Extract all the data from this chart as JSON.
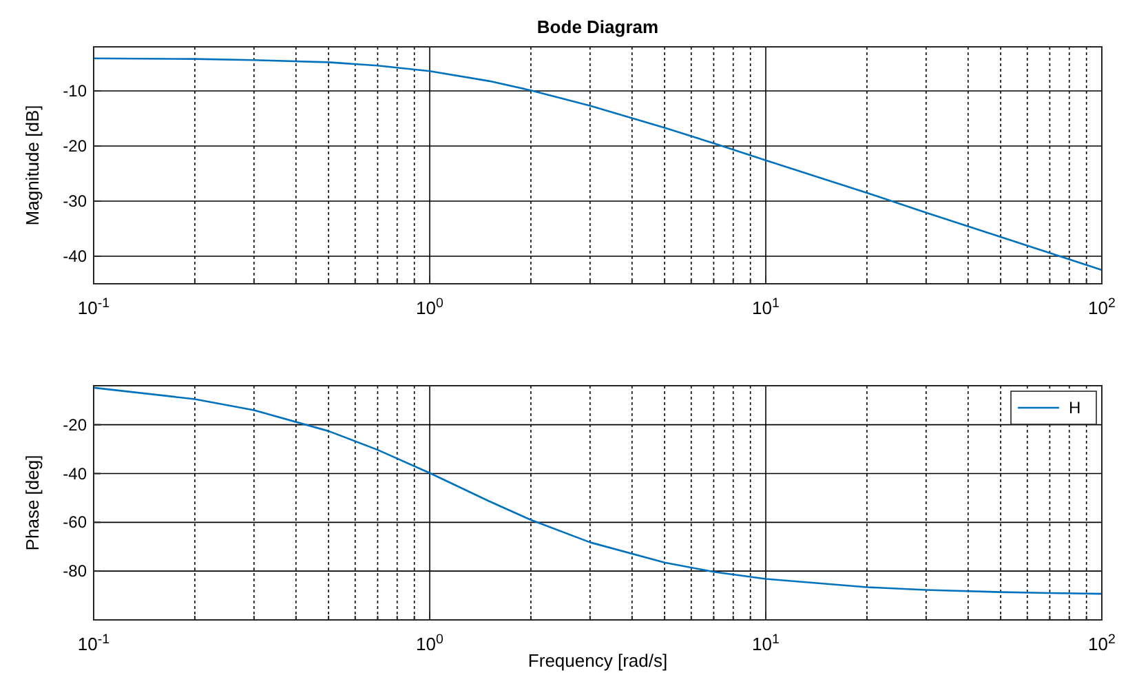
{
  "chart_data": [
    {
      "type": "line",
      "title": "Bode Diagram",
      "ylabel": "Magnitude [dB]",
      "log": "x",
      "grid": true,
      "legend": false,
      "line_style": "solid",
      "marker": "none",
      "xlim": [
        0.1,
        100
      ],
      "ylim": [
        -45,
        -2
      ],
      "yticks": [
        -10,
        -20,
        -30,
        -40
      ],
      "xticks": [
        {
          "value": 0.1,
          "label": "10$^{-1}$"
        },
        {
          "value": 0.2,
          "label": null
        },
        {
          "value": 0.3,
          "label": null
        },
        {
          "value": 0.4,
          "label": null
        },
        {
          "value": 0.5,
          "label": null
        },
        {
          "value": 0.6,
          "label": null
        },
        {
          "value": 0.7,
          "label": null
        },
        {
          "value": 0.8,
          "label": null
        },
        {
          "value": 0.9,
          "label": null
        },
        {
          "value": 1,
          "label": "10$^{0}$"
        },
        {
          "value": 2,
          "label": null
        },
        {
          "value": 3,
          "label": null
        },
        {
          "value": 4,
          "label": null
        },
        {
          "value": 5,
          "label": null
        },
        {
          "value": 6,
          "label": null
        },
        {
          "value": 7,
          "label": null
        },
        {
          "value": 8,
          "label": null
        },
        {
          "value": 9,
          "label": null
        },
        {
          "value": 10,
          "label": "10$^{1}$"
        },
        {
          "value": 20,
          "label": null
        },
        {
          "value": 30,
          "label": null
        },
        {
          "value": 40,
          "label": null
        },
        {
          "value": 50,
          "label": null
        },
        {
          "value": 60,
          "label": null
        },
        {
          "value": 70,
          "label": null
        },
        {
          "value": 80,
          "label": null
        },
        {
          "value": 90,
          "label": null
        },
        {
          "value": 100,
          "label": "10$^{2}$"
        }
      ],
      "x": [
        0.1,
        0.2,
        0.3,
        0.5,
        0.7,
        1,
        1.5,
        2,
        3,
        5,
        7,
        10,
        20,
        30,
        50,
        70,
        100
      ],
      "series": [
        {
          "color": "#0072bd",
          "values": [
            -4.1,
            -4.2,
            -4.4,
            -4.8,
            -5.4,
            -6.4,
            -8.2,
            -9.9,
            -12.7,
            -16.7,
            -19.5,
            -22.6,
            -28.5,
            -32.1,
            -36.5,
            -39.4,
            -42.5
          ]
        }
      ]
    },
    {
      "type": "line",
      "xlabel": "Frequency [rad/s]",
      "ylabel": "Phase [deg]",
      "log": "x",
      "grid": true,
      "legend": "top right",
      "line_style": "solid",
      "marker": "none",
      "xlim": [
        0.1,
        100
      ],
      "ylim": [
        -100,
        -4
      ],
      "yticks": [
        -20,
        -40,
        -60,
        -80
      ],
      "xticks": [
        {
          "value": 0.1,
          "label": "10$^{-1}$"
        },
        {
          "value": 0.2,
          "label": null
        },
        {
          "value": 0.3,
          "label": null
        },
        {
          "value": 0.4,
          "label": null
        },
        {
          "value": 0.5,
          "label": null
        },
        {
          "value": 0.6,
          "label": null
        },
        {
          "value": 0.7,
          "label": null
        },
        {
          "value": 0.8,
          "label": null
        },
        {
          "value": 0.9,
          "label": null
        },
        {
          "value": 1,
          "label": "10$^{0}$"
        },
        {
          "value": 2,
          "label": null
        },
        {
          "value": 3,
          "label": null
        },
        {
          "value": 4,
          "label": null
        },
        {
          "value": 5,
          "label": null
        },
        {
          "value": 6,
          "label": null
        },
        {
          "value": 7,
          "label": null
        },
        {
          "value": 8,
          "label": null
        },
        {
          "value": 9,
          "label": null
        },
        {
          "value": 10,
          "label": "10$^{1}$"
        },
        {
          "value": 20,
          "label": null
        },
        {
          "value": 30,
          "label": null
        },
        {
          "value": 40,
          "label": null
        },
        {
          "value": 50,
          "label": null
        },
        {
          "value": 60,
          "label": null
        },
        {
          "value": 70,
          "label": null
        },
        {
          "value": 80,
          "label": null
        },
        {
          "value": 90,
          "label": null
        },
        {
          "value": 100,
          "label": "10$^{2}$"
        }
      ],
      "x": [
        0.1,
        0.2,
        0.3,
        0.5,
        0.7,
        1,
        1.5,
        2,
        3,
        5,
        7,
        10,
        20,
        30,
        50,
        70,
        100
      ],
      "series": [
        {
          "name": "H",
          "color": "#0072bd",
          "values": [
            -4.8,
            -9.5,
            -14.0,
            -22.6,
            -30.3,
            -39.8,
            -51.3,
            -59.0,
            -68.2,
            -76.5,
            -80.3,
            -83.2,
            -86.6,
            -87.7,
            -88.6,
            -89.0,
            -89.3
          ]
        }
      ]
    }
  ]
}
